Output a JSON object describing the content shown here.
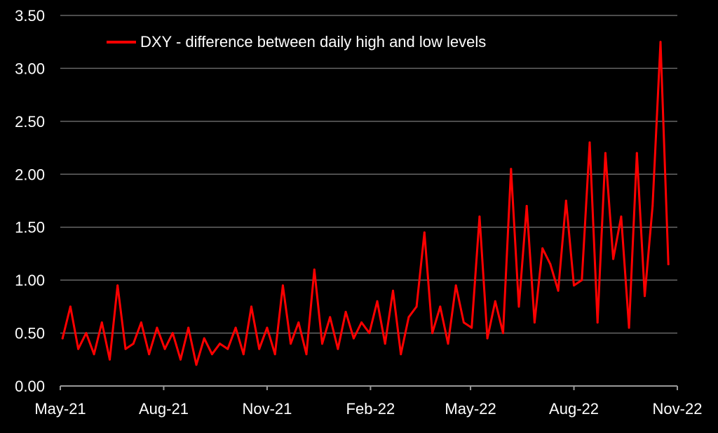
{
  "chart_data": {
    "type": "line",
    "title": "",
    "xlabel": "",
    "ylabel": "",
    "ylim": [
      0,
      3.5
    ],
    "yticks": [
      "0.00",
      "0.50",
      "1.00",
      "1.50",
      "2.00",
      "2.50",
      "3.00",
      "3.50"
    ],
    "xticks": [
      "May-21",
      "Aug-21",
      "Nov-21",
      "Feb-22",
      "May-22",
      "Aug-22",
      "Nov-22"
    ],
    "xlim": [
      "2021-05-01",
      "2022-11-01"
    ],
    "grid": "horizontal",
    "legend_position": "top-left",
    "colors": {
      "background": "#000000",
      "series": "#ff0000",
      "grid": "#666666",
      "text": "#ffffff"
    },
    "series": [
      {
        "name": "DXY - difference between daily high and low levels",
        "x": [
          "2021-05-03",
          "2021-05-10",
          "2021-05-17",
          "2021-05-24",
          "2021-05-31",
          "2021-06-07",
          "2021-06-14",
          "2021-06-21",
          "2021-06-28",
          "2021-07-05",
          "2021-07-12",
          "2021-07-19",
          "2021-07-26",
          "2021-08-02",
          "2021-08-09",
          "2021-08-16",
          "2021-08-23",
          "2021-08-30",
          "2021-09-06",
          "2021-09-13",
          "2021-09-20",
          "2021-09-27",
          "2021-10-04",
          "2021-10-11",
          "2021-10-18",
          "2021-10-25",
          "2021-11-01",
          "2021-11-08",
          "2021-11-15",
          "2021-11-22",
          "2021-11-29",
          "2021-12-06",
          "2021-12-13",
          "2021-12-20",
          "2021-12-27",
          "2022-01-03",
          "2022-01-10",
          "2022-01-17",
          "2022-01-24",
          "2022-01-31",
          "2022-02-07",
          "2022-02-14",
          "2022-02-21",
          "2022-02-28",
          "2022-03-07",
          "2022-03-14",
          "2022-03-21",
          "2022-03-28",
          "2022-04-04",
          "2022-04-11",
          "2022-04-18",
          "2022-04-25",
          "2022-05-02",
          "2022-05-09",
          "2022-05-16",
          "2022-05-23",
          "2022-05-30",
          "2022-06-06",
          "2022-06-13",
          "2022-06-20",
          "2022-06-27",
          "2022-07-04",
          "2022-07-11",
          "2022-07-18",
          "2022-07-25",
          "2022-08-01",
          "2022-08-08",
          "2022-08-15",
          "2022-08-22",
          "2022-08-29",
          "2022-09-05",
          "2022-09-12",
          "2022-09-19",
          "2022-09-26",
          "2022-10-03",
          "2022-10-10",
          "2022-10-17",
          "2022-10-24"
        ],
        "values": [
          0.45,
          0.75,
          0.35,
          0.5,
          0.3,
          0.6,
          0.25,
          0.95,
          0.35,
          0.4,
          0.6,
          0.3,
          0.55,
          0.35,
          0.5,
          0.25,
          0.55,
          0.2,
          0.45,
          0.3,
          0.4,
          0.35,
          0.55,
          0.3,
          0.75,
          0.35,
          0.55,
          0.3,
          0.95,
          0.4,
          0.6,
          0.3,
          1.1,
          0.4,
          0.65,
          0.35,
          0.7,
          0.45,
          0.6,
          0.5,
          0.8,
          0.4,
          0.9,
          0.3,
          0.65,
          0.75,
          1.45,
          0.5,
          0.75,
          0.4,
          0.95,
          0.6,
          0.55,
          1.6,
          0.45,
          0.8,
          0.5,
          2.05,
          0.75,
          1.7,
          0.6,
          1.3,
          1.15,
          0.9,
          1.75,
          0.95,
          1.0,
          2.3,
          0.6,
          2.2,
          1.2,
          1.6,
          0.55,
          2.2,
          0.85,
          1.7,
          3.25,
          1.15
        ]
      }
    ]
  }
}
